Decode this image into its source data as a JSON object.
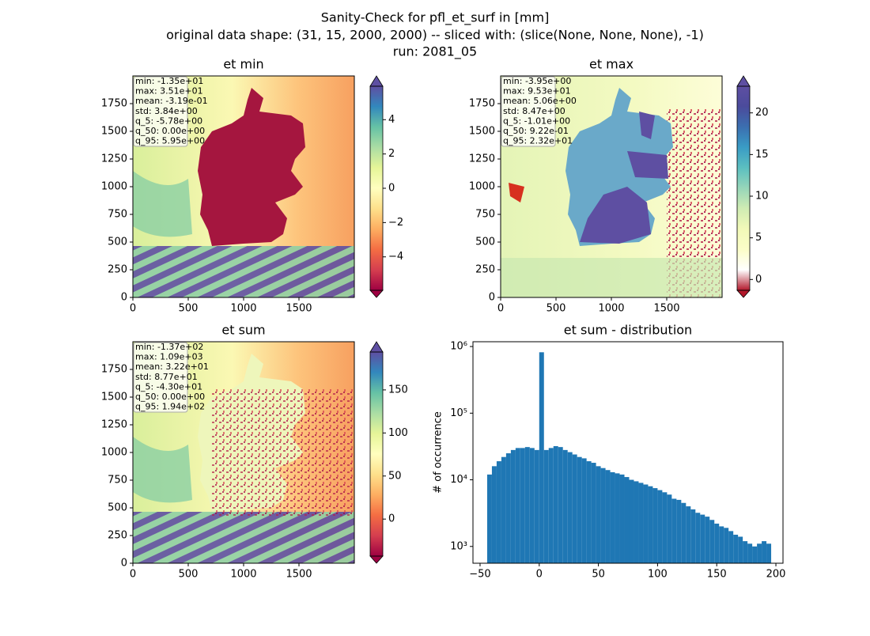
{
  "figure_title": [
    "Sanity-Check for pfl_et_surf in [mm]",
    "original data shape: (31, 15, 2000, 2000) -- sliced with: (slice(None, None, None), -1)",
    "run: 2081_05"
  ],
  "chart_data": [
    {
      "type": "heatmap",
      "title": "et min",
      "xlim": [
        0,
        2000
      ],
      "ylim": [
        0,
        2000
      ],
      "xticks": [
        0,
        500,
        1000,
        1500
      ],
      "yticks": [
        0,
        250,
        500,
        750,
        1000,
        1250,
        1500,
        1750
      ],
      "stats": [
        "min: -1.35e+01",
        "max: 3.51e+01",
        "mean: -3.19e-01",
        "std: 3.84e+00",
        "q_5: -5.78e+00",
        "q_50: 0.00e+00",
        "q_95: 5.95e+00"
      ],
      "colorbar": {
        "lim": [
          -5.95,
          5.95
        ],
        "ticks": [
          {
            "value": -4,
            "label": "−4"
          },
          {
            "value": -2,
            "label": "−2"
          },
          0,
          2,
          4
        ],
        "colors": [
          "#9e0142",
          "#d53e4f",
          "#f46d43",
          "#fdae61",
          "#fee08b",
          "#ffffbf",
          "#e6f598",
          "#abdda4",
          "#66c2a5",
          "#3288bd",
          "#5e4fa2"
        ]
      }
    },
    {
      "type": "heatmap",
      "title": "et max",
      "xlim": [
        0,
        2000
      ],
      "ylim": [
        0,
        2000
      ],
      "xticks": [
        0,
        500,
        1000,
        1500
      ],
      "yticks": [
        0,
        250,
        500,
        750,
        1000,
        1250,
        1500,
        1750
      ],
      "stats": [
        "min: -3.95e+00",
        "max: 9.53e+01",
        "mean: 5.06e+00",
        "std: 8.47e+00",
        "q_5: -1.01e+00",
        "q_50: 9.22e-01",
        "q_95: 2.32e+01"
      ],
      "colorbar": {
        "lim": [
          -1.3,
          23.2
        ],
        "ticks": [
          0,
          5,
          10,
          15,
          20
        ],
        "colors": [
          "#b2182b",
          "#ffffff",
          "#fbfdc8",
          "#f2f9b8",
          "#d0ecb3",
          "#97d6b9",
          "#5cbfc0",
          "#3a9cc5",
          "#3b6fb0",
          "#4b4b9c",
          "#5e4fa2"
        ]
      }
    },
    {
      "type": "heatmap",
      "title": "et sum",
      "xlim": [
        0,
        2000
      ],
      "ylim": [
        0,
        2000
      ],
      "xticks": [
        0,
        500,
        1000,
        1500
      ],
      "yticks": [
        0,
        250,
        500,
        750,
        1000,
        1250,
        1500,
        1750
      ],
      "stats": [
        "min: -1.37e+02",
        "max: 1.09e+03",
        "mean: 3.22e+01",
        "std: 8.77e+01",
        "q_5: -4.30e+01",
        "q_50: 0.00e+00",
        "q_95: 1.94e+02"
      ],
      "colorbar": {
        "lim": [
          -43,
          194
        ],
        "ticks": [
          0,
          50,
          100,
          150
        ],
        "colors": [
          "#9e0142",
          "#d53e4f",
          "#f46d43",
          "#fdae61",
          "#fee08b",
          "#ffffbf",
          "#e6f598",
          "#abdda4",
          "#66c2a5",
          "#3288bd",
          "#5e4fa2"
        ]
      }
    },
    {
      "type": "histogram",
      "title": "et sum - distribution",
      "ylabel": "# of occurrence",
      "color": "#1f77b4",
      "log_y": true,
      "xlim": [
        -56,
        206
      ],
      "ylim": [
        560,
        1180000
      ],
      "xticks": [
        {
          "value": -50,
          "label": "−50"
        },
        0,
        50,
        100,
        150,
        200
      ],
      "yticks": [
        {
          "value": 1000,
          "label": "10³"
        },
        {
          "value": 10000,
          "label": "10⁴"
        },
        {
          "value": 100000,
          "label": "10⁵"
        },
        {
          "value": 1000000,
          "label": "10⁶"
        }
      ],
      "bins": [
        -44,
        -40,
        -36,
        -32,
        -28,
        -24,
        -20,
        -16,
        -12,
        -8,
        -4,
        0,
        4,
        8,
        12,
        16,
        20,
        24,
        28,
        32,
        36,
        40,
        44,
        48,
        52,
        56,
        60,
        64,
        68,
        72,
        76,
        80,
        84,
        88,
        92,
        96,
        100,
        104,
        108,
        112,
        116,
        120,
        124,
        128,
        132,
        136,
        140,
        144,
        148,
        152,
        156,
        160,
        164,
        168,
        172,
        176,
        180,
        184,
        188,
        192,
        196
      ],
      "counts": [
        12000,
        16000,
        19000,
        22000,
        25000,
        28000,
        30000,
        30000,
        31000,
        30000,
        28000,
        820000,
        28000,
        30000,
        32000,
        31000,
        28000,
        26000,
        24000,
        22000,
        21000,
        19000,
        18000,
        16000,
        15000,
        14000,
        13000,
        12500,
        12000,
        11000,
        10000,
        9500,
        9000,
        8500,
        8000,
        7500,
        7000,
        6500,
        6000,
        5200,
        5000,
        4500,
        4000,
        3600,
        3200,
        3000,
        2800,
        2500,
        2200,
        2000,
        1900,
        1700,
        1500,
        1400,
        1200,
        1100,
        1000,
        1100,
        1200,
        1100
      ]
    }
  ]
}
